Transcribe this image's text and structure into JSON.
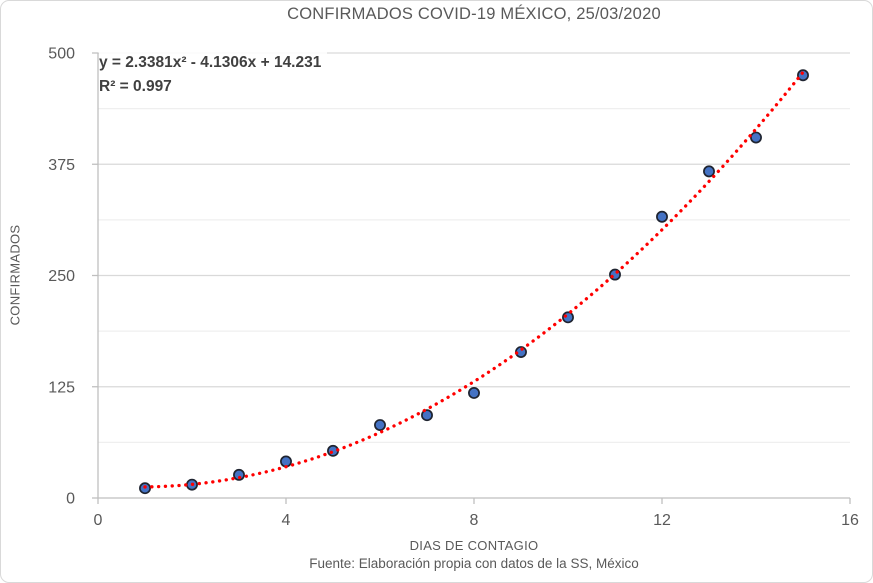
{
  "chart_data": {
    "type": "scatter",
    "title": "CONFIRMADOS COVID-19 MÉXICO, 25/03/2020",
    "xlabel": "DIAS DE CONTAGIO",
    "ylabel": "CONFIRMADOS",
    "source_note": "Fuente: Elaboración propia con datos de la SS, México",
    "annotations": {
      "equation": "y = 2.3381x² - 4.1306x + 14.231",
      "r_squared": "R² = 0.997"
    },
    "x": [
      1,
      2,
      3,
      4,
      5,
      6,
      7,
      8,
      9,
      10,
      11,
      12,
      13,
      14,
      15
    ],
    "y": [
      11,
      15,
      26,
      41,
      53,
      82,
      93,
      118,
      164,
      203,
      251,
      316,
      367,
      405,
      475
    ],
    "xlim": [
      0,
      16
    ],
    "ylim": [
      0,
      500
    ],
    "x_ticks": [
      0,
      4,
      8,
      12,
      16
    ],
    "y_ticks": [
      0,
      125,
      250,
      375,
      500
    ],
    "y_minor_step": 62.5,
    "grid": "horizontal",
    "legend": "none",
    "trendline": {
      "type": "polynomial",
      "degree": 2,
      "coefficients": [
        2.3381,
        -4.1306,
        14.231
      ],
      "r2": 0.997,
      "range": [
        1,
        15
      ],
      "style": "dotted",
      "color": "#FF0000"
    },
    "marker": {
      "shape": "circle",
      "fill": "#4472C4",
      "stroke": "#1F2430"
    },
    "colors": {
      "background": "#FFFFFF",
      "border": "#D9D9D9",
      "grid_major": "#D9D9D9",
      "grid_minor": "#EFEFEF",
      "axis": "#BFBFBF",
      "text": "#595959",
      "annotation_text": "#404040"
    }
  }
}
